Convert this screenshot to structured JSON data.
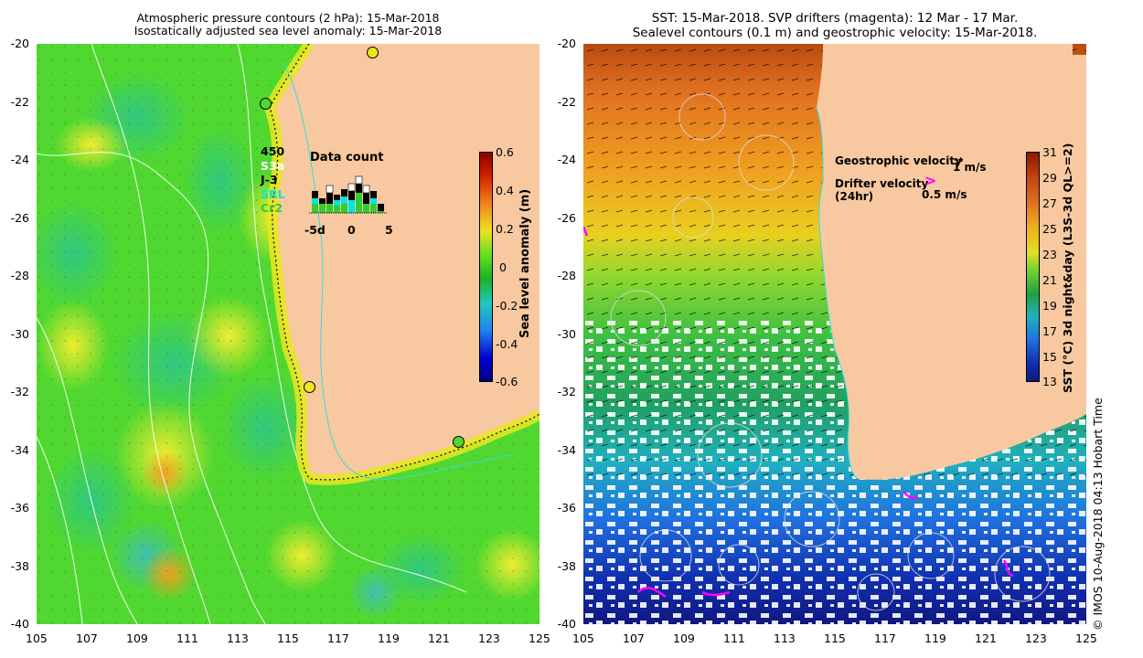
{
  "left_panel": {
    "title_line1": "Atmospheric pressure contours (2 hPa): 15-Mar-2018",
    "title_line2": "Isostatically adjusted sea level anomaly: 15-Mar-2018",
    "x_ticks": [
      "105",
      "107",
      "109",
      "111",
      "113",
      "115",
      "117",
      "119",
      "121",
      "123",
      "125"
    ],
    "y_ticks": [
      "-20",
      "-22",
      "-24",
      "-26",
      "-28",
      "-30",
      "-32",
      "-34",
      "-36",
      "-38",
      "-40"
    ],
    "colorbar": {
      "label": "Sea level anomaly (m)",
      "ticks": [
        "0.6",
        "0.4",
        "0.2",
        "0",
        "-0.2",
        "-0.4",
        "-0.6"
      ],
      "range": [
        -0.6,
        0.6
      ]
    },
    "data_count": {
      "title": "Data count",
      "legend": [
        "450",
        "S3a",
        "J-3",
        "SRL",
        "Cr2"
      ],
      "legend_colors": [
        "#000000",
        "#ffffff",
        "#000000",
        "#00e5e5",
        "#33cc33"
      ],
      "x_ticks": [
        "-5d",
        "0",
        "5"
      ]
    },
    "tide_gauges": [
      {
        "lon": 118.5,
        "lat": -20.3
      },
      {
        "lon": 114.1,
        "lat": -22.0
      },
      {
        "lon": 115.9,
        "lat": -31.8
      },
      {
        "lon": 121.9,
        "lat": -33.7
      }
    ]
  },
  "right_panel": {
    "title_line1": "SST: 15-Mar-2018. SVP drifters (magenta): 12 Mar - 17 Mar.",
    "title_line2": "Sealevel contours (0.1 m) and geostrophic velocity: 15-Mar-2018.",
    "x_ticks": [
      "105",
      "107",
      "109",
      "111",
      "113",
      "115",
      "117",
      "119",
      "121",
      "123",
      "125"
    ],
    "y_ticks": [
      "-20",
      "-22",
      "-24",
      "-26",
      "-28",
      "-30",
      "-32",
      "-34",
      "-36",
      "-38",
      "-40"
    ],
    "geo_velocity_label": "Geostrophic velocity",
    "geo_velocity_scale": "1 m/s",
    "drifter_label_line1": "Drifter velocity",
    "drifter_label_line2": "(24hr)",
    "drifter_scale": "0.5 m/s",
    "colorbar": {
      "label": "SST (°C) 3d night&day (L3S-3d QL>=2)",
      "ticks": [
        "31",
        "29",
        "27",
        "25",
        "23",
        "21",
        "19",
        "17",
        "15",
        "13"
      ],
      "range": [
        13,
        31
      ]
    }
  },
  "credit": "© IMOS 10-Aug-2018 04:13 Hobart Time",
  "colors": {
    "land": "#f8c8a0",
    "slr_green": "#44dd22",
    "sst_warm": "#e67814",
    "sst_cold": "#1060d0",
    "drifter": "#ff00ff"
  }
}
